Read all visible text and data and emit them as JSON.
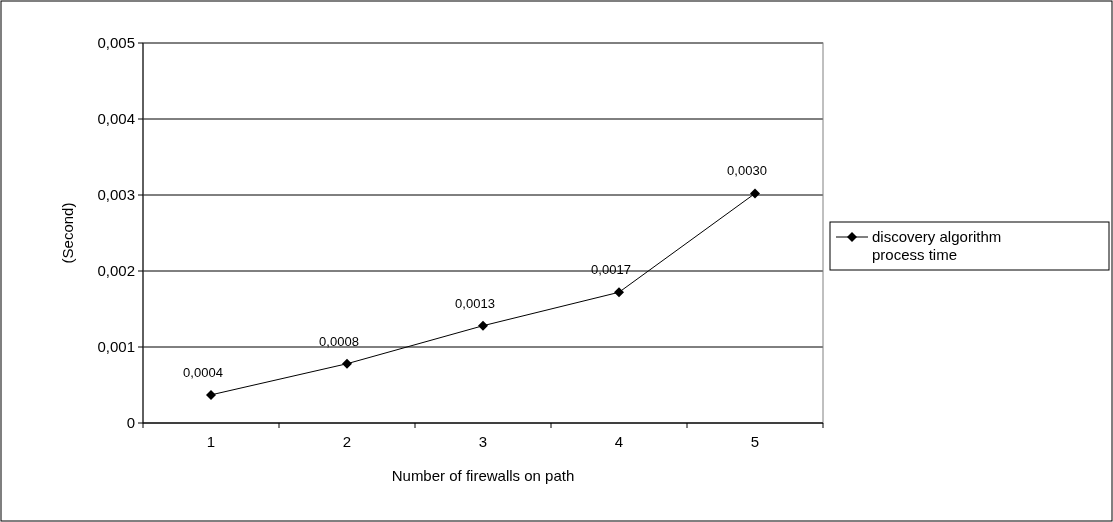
{
  "chart_data": {
    "type": "line",
    "xlabel": "Number of firewalls on path",
    "ylabel": "(Second)",
    "categories": [
      "1",
      "2",
      "3",
      "4",
      "5"
    ],
    "series": [
      {
        "name": "discovery algorithm process time",
        "color": "#000000",
        "values": [
          0.00037,
          0.00078,
          0.00128,
          0.00172,
          0.00302
        ],
        "value_labels": [
          "0,0004",
          "0,0008",
          "0,0013",
          "0,0017",
          "0,0030"
        ]
      }
    ],
    "ylim": [
      0,
      0.005
    ],
    "yticks": [
      {
        "value": 0,
        "label": "0"
      },
      {
        "value": 0.001,
        "label": "0,001"
      },
      {
        "value": 0.002,
        "label": "0,002"
      },
      {
        "value": 0.003,
        "label": "0,003"
      },
      {
        "value": 0.004,
        "label": "0,004"
      },
      {
        "value": 0.005,
        "label": "0,005"
      }
    ],
    "grid": "y",
    "legend": "right",
    "marker": "diamond",
    "line_style": "solid"
  }
}
